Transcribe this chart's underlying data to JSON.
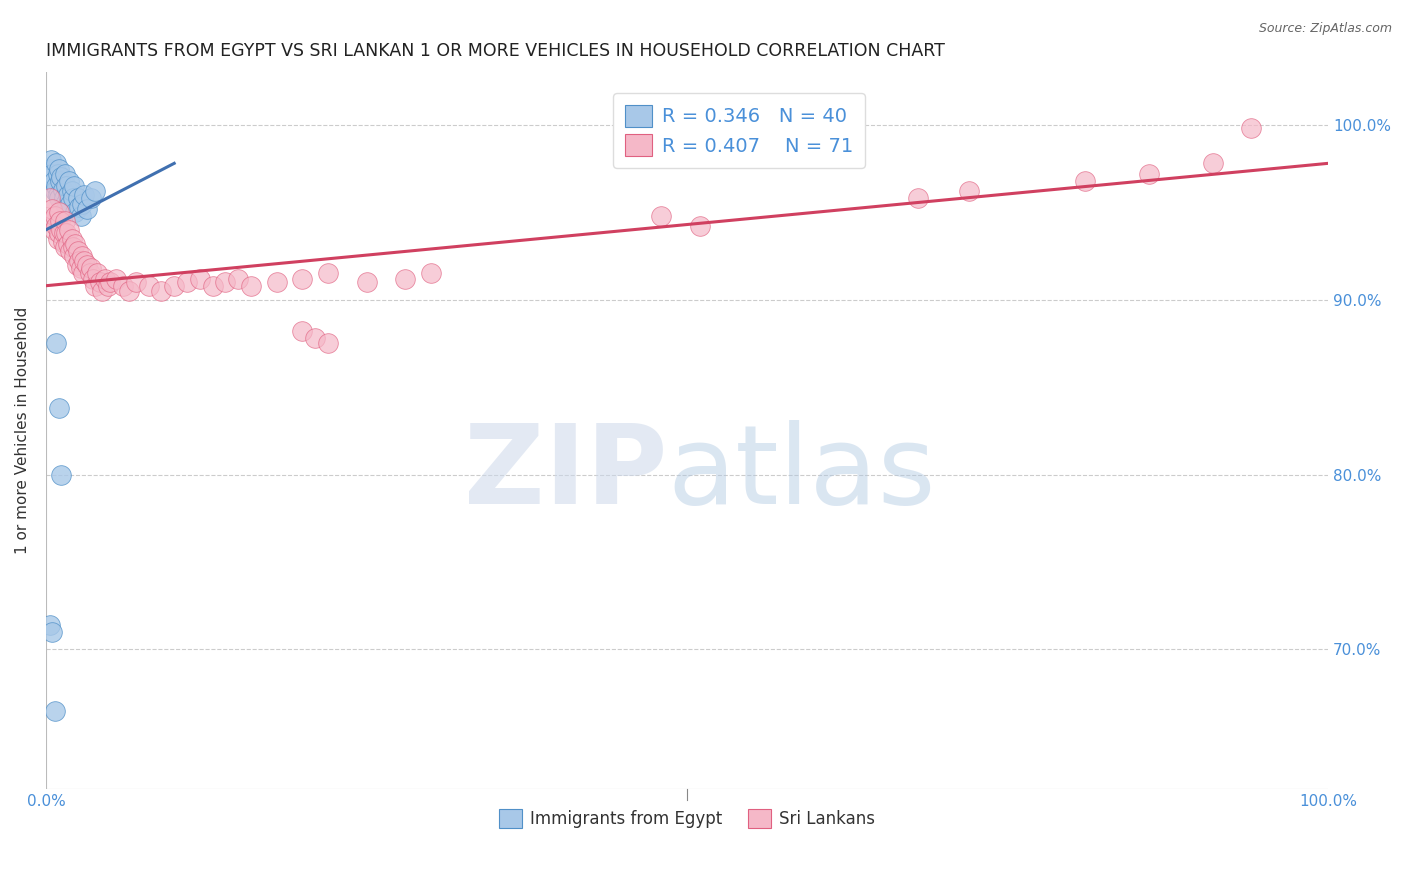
{
  "title": "IMMIGRANTS FROM EGYPT VS SRI LANKAN 1 OR MORE VEHICLES IN HOUSEHOLD CORRELATION CHART",
  "source": "Source: ZipAtlas.com",
  "ylabel": "1 or more Vehicles in Household",
  "legend_egypt": "Immigrants from Egypt",
  "legend_sri": "Sri Lankans",
  "R_egypt": 0.346,
  "N_egypt": 40,
  "R_sri": 0.407,
  "N_sri": 71,
  "color_egypt_fill": "#a8c8e8",
  "color_egypt_edge": "#5090c8",
  "color_sri_fill": "#f5b8c8",
  "color_sri_edge": "#e06080",
  "color_egypt_line": "#4070b0",
  "color_sri_line": "#d04060",
  "color_label": "#4a90d9",
  "xlim": [
    0.0,
    1.0
  ],
  "ylim": [
    0.62,
    1.03
  ],
  "ytick_values": [
    0.7,
    0.8,
    0.9,
    1.0
  ],
  "grid_color": "#cccccc",
  "background_color": "#ffffff",
  "title_fontsize": 12.5,
  "egypt_x": [
    0.002,
    0.003,
    0.004,
    0.005,
    0.006,
    0.007,
    0.008,
    0.008,
    0.009,
    0.009,
    0.01,
    0.01,
    0.011,
    0.012,
    0.013,
    0.014,
    0.015,
    0.015,
    0.016,
    0.017,
    0.018,
    0.019,
    0.02,
    0.021,
    0.022,
    0.023,
    0.025,
    0.026,
    0.027,
    0.028,
    0.03,
    0.032,
    0.035,
    0.038,
    0.008,
    0.01,
    0.012,
    0.003,
    0.005,
    0.007
  ],
  "egypt_y": [
    0.97,
    0.975,
    0.98,
    0.972,
    0.968,
    0.962,
    0.978,
    0.965,
    0.972,
    0.96,
    0.975,
    0.958,
    0.968,
    0.97,
    0.963,
    0.958,
    0.972,
    0.955,
    0.965,
    0.96,
    0.968,
    0.955,
    0.962,
    0.958,
    0.965,
    0.95,
    0.958,
    0.953,
    0.948,
    0.955,
    0.96,
    0.952,
    0.958,
    0.962,
    0.875,
    0.838,
    0.8,
    0.714,
    0.71,
    0.665
  ],
  "sri_x": [
    0.003,
    0.004,
    0.005,
    0.006,
    0.007,
    0.008,
    0.009,
    0.01,
    0.01,
    0.011,
    0.012,
    0.013,
    0.014,
    0.015,
    0.015,
    0.016,
    0.017,
    0.018,
    0.019,
    0.02,
    0.021,
    0.022,
    0.023,
    0.024,
    0.025,
    0.026,
    0.027,
    0.028,
    0.029,
    0.03,
    0.032,
    0.034,
    0.035,
    0.037,
    0.038,
    0.04,
    0.042,
    0.044,
    0.046,
    0.048,
    0.05,
    0.055,
    0.06,
    0.065,
    0.07,
    0.08,
    0.09,
    0.1,
    0.11,
    0.12,
    0.13,
    0.14,
    0.15,
    0.16,
    0.18,
    0.2,
    0.22,
    0.25,
    0.28,
    0.3,
    0.2,
    0.21,
    0.22,
    0.48,
    0.51,
    0.68,
    0.72,
    0.81,
    0.86,
    0.91,
    0.94
  ],
  "sri_y": [
    0.958,
    0.945,
    0.952,
    0.94,
    0.948,
    0.942,
    0.935,
    0.95,
    0.938,
    0.945,
    0.94,
    0.933,
    0.938,
    0.945,
    0.93,
    0.938,
    0.932,
    0.94,
    0.928,
    0.935,
    0.93,
    0.925,
    0.932,
    0.92,
    0.928,
    0.922,
    0.918,
    0.925,
    0.915,
    0.922,
    0.92,
    0.915,
    0.918,
    0.912,
    0.908,
    0.915,
    0.91,
    0.905,
    0.912,
    0.908,
    0.91,
    0.912,
    0.908,
    0.905,
    0.91,
    0.908,
    0.905,
    0.908,
    0.91,
    0.912,
    0.908,
    0.91,
    0.912,
    0.908,
    0.91,
    0.912,
    0.915,
    0.91,
    0.912,
    0.915,
    0.882,
    0.878,
    0.875,
    0.948,
    0.942,
    0.958,
    0.962,
    0.968,
    0.972,
    0.978,
    0.998
  ],
  "egypt_trend_x": [
    0.0,
    0.1
  ],
  "egypt_trend_y": [
    0.94,
    0.978
  ],
  "sri_trend_x": [
    0.0,
    1.0
  ],
  "sri_trend_y": [
    0.908,
    0.978
  ]
}
